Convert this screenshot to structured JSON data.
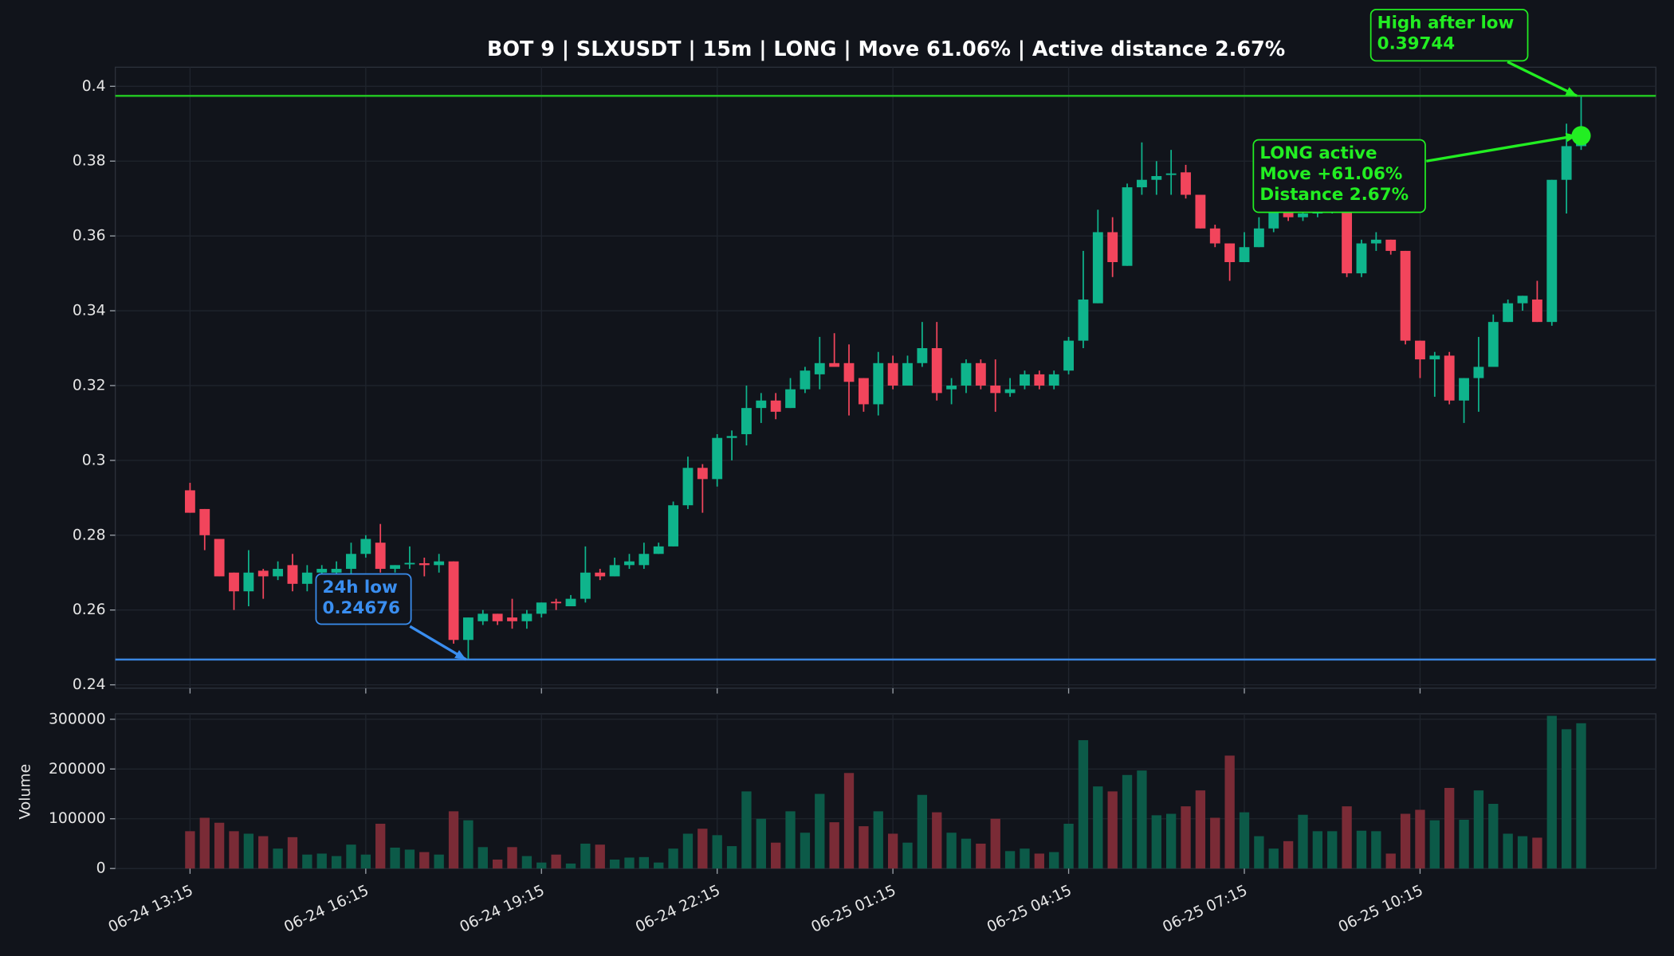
{
  "chart_data": [
    {
      "type": "candlestick",
      "title": "BOT 9 | SLXUSDT | 15m | LONG | Move 61.06% | Active distance 2.67%",
      "open": [
        0.292,
        0.287,
        0.279,
        0.27,
        0.265,
        0.2705,
        0.269,
        0.272,
        0.267,
        0.27,
        0.27,
        0.271,
        0.275,
        0.278,
        0.271,
        0.2722,
        0.2725,
        0.272,
        0.273,
        0.252,
        0.257,
        0.259,
        0.258,
        0.257,
        0.259,
        0.2622,
        0.261,
        0.263,
        0.27,
        0.269,
        0.272,
        0.272,
        0.275,
        0.277,
        0.288,
        0.298,
        0.295,
        0.306,
        0.307,
        0.314,
        0.316,
        0.314,
        0.319,
        0.323,
        0.326,
        0.326,
        0.322,
        0.315,
        0.326,
        0.32,
        0.326,
        0.33,
        0.319,
        0.32,
        0.326,
        0.32,
        0.318,
        0.32,
        0.323,
        0.32,
        0.324,
        0.332,
        0.342,
        0.361,
        0.352,
        0.373,
        0.375,
        0.3763,
        0.377,
        0.371,
        0.362,
        0.358,
        0.353,
        0.357,
        0.362,
        0.368,
        0.365,
        0.366,
        0.367,
        0.368,
        0.35,
        0.358,
        0.359,
        0.356,
        0.332,
        0.327,
        0.328,
        0.316,
        0.322,
        0.325,
        0.337,
        0.342,
        0.343,
        0.337,
        0.375,
        0.384
      ],
      "high": [
        0.294,
        0.287,
        0.279,
        0.27,
        0.276,
        0.271,
        0.273,
        0.275,
        0.272,
        0.272,
        0.273,
        0.278,
        0.28,
        0.283,
        0.272,
        0.277,
        0.274,
        0.275,
        0.273,
        0.258,
        0.26,
        0.259,
        0.263,
        0.26,
        0.262,
        0.263,
        0.264,
        0.277,
        0.271,
        0.274,
        0.275,
        0.278,
        0.278,
        0.289,
        0.301,
        0.299,
        0.307,
        0.308,
        0.32,
        0.318,
        0.318,
        0.322,
        0.325,
        0.333,
        0.334,
        0.331,
        0.322,
        0.329,
        0.328,
        0.328,
        0.337,
        0.337,
        0.322,
        0.327,
        0.327,
        0.327,
        0.322,
        0.324,
        0.324,
        0.324,
        0.333,
        0.356,
        0.367,
        0.365,
        0.374,
        0.385,
        0.38,
        0.383,
        0.379,
        0.371,
        0.363,
        0.358,
        0.361,
        0.365,
        0.37,
        0.37,
        0.368,
        0.369,
        0.369,
        0.368,
        0.359,
        0.361,
        0.359,
        0.356,
        0.332,
        0.329,
        0.329,
        0.322,
        0.333,
        0.339,
        0.343,
        0.344,
        0.348,
        0.375,
        0.39,
        0.39744
      ],
      "low": [
        0.286,
        0.276,
        0.269,
        0.26,
        0.261,
        0.263,
        0.268,
        0.265,
        0.265,
        0.268,
        0.268,
        0.269,
        0.274,
        0.27,
        0.27,
        0.271,
        0.269,
        0.27,
        0.251,
        0.24676,
        0.256,
        0.256,
        0.255,
        0.255,
        0.258,
        0.26,
        0.261,
        0.262,
        0.268,
        0.269,
        0.271,
        0.271,
        0.275,
        0.277,
        0.287,
        0.286,
        0.293,
        0.3,
        0.304,
        0.31,
        0.311,
        0.314,
        0.318,
        0.319,
        0.325,
        0.312,
        0.313,
        0.312,
        0.319,
        0.32,
        0.325,
        0.316,
        0.315,
        0.318,
        0.319,
        0.313,
        0.317,
        0.319,
        0.319,
        0.319,
        0.323,
        0.33,
        0.342,
        0.349,
        0.352,
        0.371,
        0.371,
        0.371,
        0.37,
        0.362,
        0.357,
        0.348,
        0.353,
        0.357,
        0.361,
        0.364,
        0.364,
        0.365,
        0.366,
        0.349,
        0.349,
        0.356,
        0.355,
        0.331,
        0.322,
        0.317,
        0.315,
        0.31,
        0.313,
        0.325,
        0.337,
        0.34,
        0.337,
        0.336,
        0.366,
        0.383
      ],
      "close": [
        0.286,
        0.28,
        0.269,
        0.265,
        0.27,
        0.269,
        0.271,
        0.267,
        0.27,
        0.271,
        0.271,
        0.275,
        0.279,
        0.271,
        0.272,
        0.2726,
        0.272,
        0.273,
        0.252,
        0.258,
        0.259,
        0.257,
        0.257,
        0.259,
        0.262,
        0.2618,
        0.263,
        0.27,
        0.269,
        0.272,
        0.273,
        0.275,
        0.277,
        0.288,
        0.298,
        0.295,
        0.306,
        0.3065,
        0.314,
        0.316,
        0.313,
        0.319,
        0.324,
        0.326,
        0.325,
        0.321,
        0.315,
        0.326,
        0.32,
        0.326,
        0.33,
        0.318,
        0.32,
        0.326,
        0.32,
        0.318,
        0.319,
        0.323,
        0.32,
        0.323,
        0.332,
        0.343,
        0.361,
        0.353,
        0.373,
        0.375,
        0.376,
        0.3767,
        0.371,
        0.362,
        0.358,
        0.353,
        0.357,
        0.362,
        0.368,
        0.365,
        0.366,
        0.367,
        0.368,
        0.35,
        0.358,
        0.359,
        0.356,
        0.332,
        0.327,
        0.328,
        0.316,
        0.322,
        0.325,
        0.337,
        0.342,
        0.344,
        0.337,
        0.375,
        0.384,
        0.3868
      ],
      "up_color": "#0fb48c",
      "down_color": "#f2455c",
      "high_line_color": "#22cc22",
      "low_line_color": "#3a86e0",
      "ylim": [
        0.2391,
        0.4051
      ],
      "yticks": [
        0.24,
        0.26,
        0.28,
        0.3,
        0.32,
        0.34,
        0.36,
        0.38,
        0.4
      ],
      "grid": true,
      "annotations": [
        {
          "lines": [
            "24h low",
            "0.24676"
          ],
          "color": "#3a8ef0"
        },
        {
          "lines": [
            "High after low",
            "0.39744"
          ],
          "color": "#22ee22"
        },
        {
          "lines": [
            "LONG active",
            "Move +61.06%",
            "Distance 2.67%"
          ],
          "color": "#22ee22"
        }
      ]
    },
    {
      "type": "bar",
      "ylabel": "Volume",
      "categories": [
        "06-24 13:15",
        null,
        null,
        null,
        null,
        null,
        null,
        null,
        null,
        null,
        null,
        null,
        "06-24 16:15",
        null,
        null,
        null,
        null,
        null,
        null,
        null,
        null,
        null,
        null,
        null,
        "06-24 19:15",
        null,
        null,
        null,
        null,
        null,
        null,
        null,
        null,
        null,
        null,
        null,
        "06-24 22:15",
        null,
        null,
        null,
        null,
        null,
        null,
        null,
        null,
        null,
        null,
        null,
        "06-25 01:15",
        null,
        null,
        null,
        null,
        null,
        null,
        null,
        null,
        null,
        null,
        null,
        "06-25 04:15",
        null,
        null,
        null,
        null,
        null,
        null,
        null,
        null,
        null,
        null,
        null,
        "06-25 07:15",
        null,
        null,
        null,
        null,
        null,
        null,
        null,
        null,
        null,
        null,
        null,
        "06-25 10:15",
        null,
        null,
        null,
        null,
        null,
        null,
        null,
        null,
        null,
        null,
        null
      ],
      "values": [
        75000,
        102000,
        92000,
        75000,
        70000,
        65000,
        40000,
        63000,
        28000,
        30000,
        25000,
        48000,
        28000,
        90000,
        42000,
        38000,
        33000,
        28000,
        115000,
        97000,
        43000,
        18000,
        43000,
        25000,
        12000,
        28000,
        10000,
        50000,
        48000,
        18000,
        22000,
        23000,
        12000,
        40000,
        70000,
        80000,
        67000,
        45000,
        155000,
        100000,
        52000,
        115000,
        72000,
        150000,
        93000,
        192000,
        85000,
        115000,
        70000,
        52000,
        148000,
        113000,
        72000,
        60000,
        50000,
        100000,
        35000,
        40000,
        30000,
        33000,
        90000,
        258000,
        165000,
        155000,
        188000,
        197000,
        107000,
        110000,
        125000,
        157000,
        102000,
        227000,
        113000,
        65000,
        40000,
        55000,
        108000,
        75000,
        75000,
        125000,
        76000,
        75000,
        30000,
        110000,
        118000,
        97000,
        162000,
        98000,
        157000,
        130000,
        70000,
        65000,
        62000,
        307000,
        280000,
        292000
      ],
      "up_color": "#0c5a48",
      "down_color": "#7a2b36",
      "ylim": [
        0,
        311000
      ],
      "yticks": [
        0,
        100000,
        200000,
        300000
      ],
      "grid": true
    }
  ]
}
